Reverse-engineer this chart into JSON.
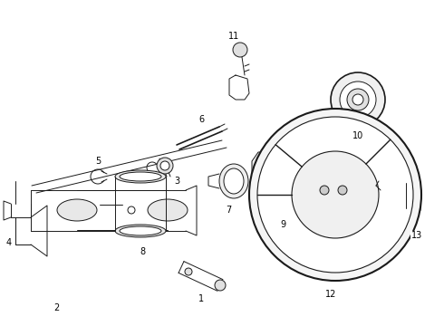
{
  "background_color": "#ffffff",
  "line_color": "#1a1a1a",
  "label_color": "#000000",
  "figsize": [
    4.9,
    3.6
  ],
  "dpi": 100,
  "lw": 0.7
}
